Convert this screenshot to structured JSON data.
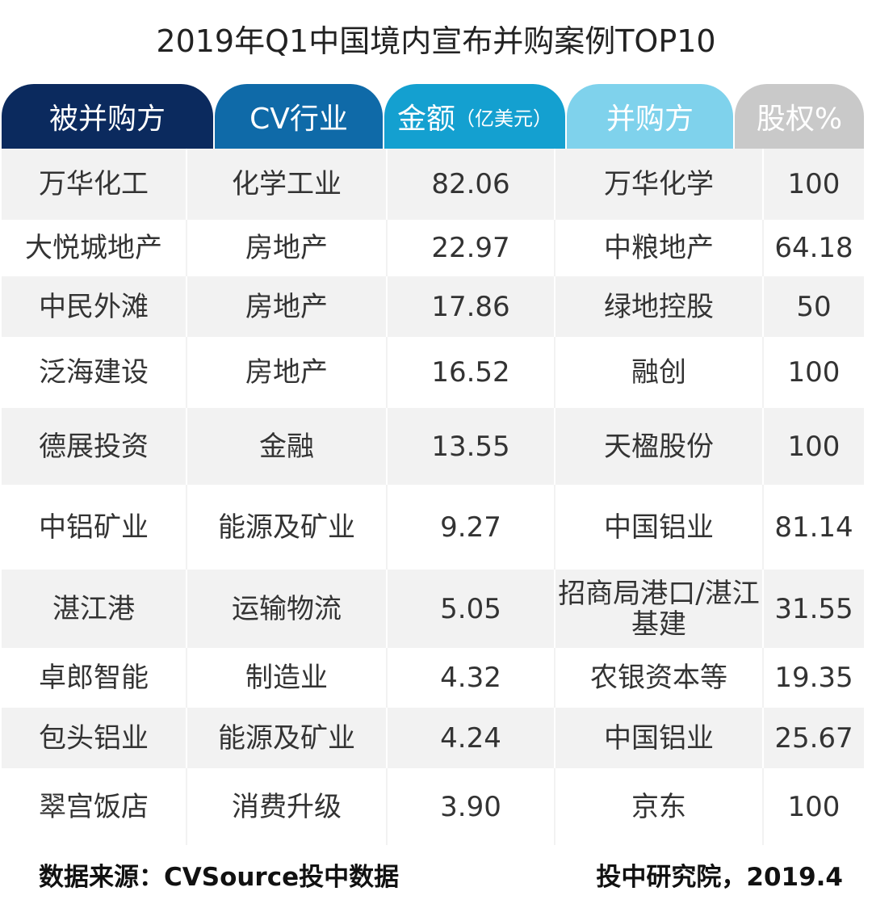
{
  "title": "2019年Q1中国境内宣布并购案例TOP10",
  "header": {
    "col0": "被并购方",
    "col1": "CV行业",
    "col2_main": "金额",
    "col2_unit": "（亿美元）",
    "col3": "并购方",
    "col4": "股权%"
  },
  "colors": {
    "header_col0": "#0b2a5e",
    "header_col1": "#0f6aa8",
    "header_col2": "#14a0d0",
    "header_col3": "#7fd2ec",
    "header_col4": "#c9c9c9",
    "row_stripe": "#f2f2f2"
  },
  "rows": [
    [
      "万华化工",
      "化学工业",
      "82.06",
      "万华化学",
      "100"
    ],
    [
      "大悦城地产",
      "房地产",
      "22.97",
      "中粮地产",
      "64.18"
    ],
    [
      "中民外滩",
      "房地产",
      "17.86",
      "绿地控股",
      "50"
    ],
    [
      "泛海建设",
      "房地产",
      "16.52",
      "融创",
      "100"
    ],
    [
      "德展投资",
      "金融",
      "13.55",
      "天楹股份",
      "100"
    ],
    [
      "中铝矿业",
      "能源及矿业",
      "9.27",
      "中国铝业",
      "81.14"
    ],
    [
      "湛江港",
      "运输物流",
      "5.05",
      "招商局港口/湛江基建",
      "31.55"
    ],
    [
      "卓郎智能",
      "制造业",
      "4.32",
      "农银资本等",
      "19.35"
    ],
    [
      "包头铝业",
      "能源及矿业",
      "4.24",
      "中国铝业",
      "25.67"
    ],
    [
      "翠宫饭店",
      "消费升级",
      "3.90",
      "京东",
      "100"
    ]
  ],
  "footer": {
    "source": "数据来源：CVSource投中数据",
    "org": "投中研究院，2019.4"
  }
}
